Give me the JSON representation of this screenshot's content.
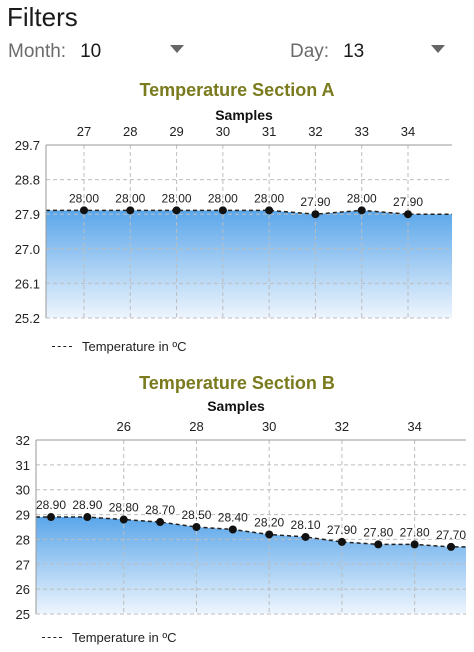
{
  "filters": {
    "title": "Filters",
    "month_label": "Month:",
    "month_value": "10",
    "day_label": "Day:",
    "day_value": "13"
  },
  "chart_data": [
    {
      "type": "area",
      "title": "Temperature Section A",
      "xlabel": "Samples",
      "ylabel": "",
      "x": [
        27,
        28,
        29,
        30,
        31,
        32,
        33,
        34
      ],
      "x_ticks": [
        "27",
        "28",
        "29",
        "30",
        "31",
        "32",
        "33",
        "34"
      ],
      "y_ticks": [
        "29.7",
        "28.8",
        "27.9",
        "27.0",
        "26.1",
        "25.2"
      ],
      "ylim": [
        25.2,
        29.7
      ],
      "series": [
        {
          "name": "Temperature in ºC",
          "values": [
            28.0,
            28.0,
            28.0,
            28.0,
            28.0,
            27.9,
            28.0,
            27.9
          ],
          "labels": [
            "28.00",
            "28.00",
            "28.00",
            "28.00",
            "28.00",
            "27.90",
            "28.00",
            "27.90"
          ]
        }
      ],
      "grid": true,
      "x_axis_position": "top",
      "legend": "bottom-left"
    },
    {
      "type": "area",
      "title": "Temperature Section B",
      "xlabel": "Samples",
      "ylabel": "",
      "x": [
        24,
        25,
        26,
        27,
        28,
        29,
        30,
        31,
        32,
        33,
        34,
        35
      ],
      "x_ticks": [
        "26",
        "28",
        "30",
        "32",
        "34"
      ],
      "x_tick_values": [
        26,
        28,
        30,
        32,
        34
      ],
      "y_ticks": [
        "32",
        "31",
        "30",
        "29",
        "28",
        "27",
        "26",
        "25"
      ],
      "ylim": [
        25,
        32
      ],
      "series": [
        {
          "name": "Temperature in ºC",
          "values": [
            28.9,
            28.9,
            28.8,
            28.7,
            28.5,
            28.4,
            28.2,
            28.1,
            27.9,
            27.8,
            27.8,
            27.7
          ],
          "labels": [
            "28.90",
            "28.90",
            "28.80",
            "28.70",
            "28.50",
            "28.40",
            "28.20",
            "28.10",
            "27.90",
            "27.80",
            "27.80",
            "27.70"
          ]
        }
      ],
      "grid": true,
      "x_axis_position": "top",
      "legend": "bottom-left"
    }
  ]
}
